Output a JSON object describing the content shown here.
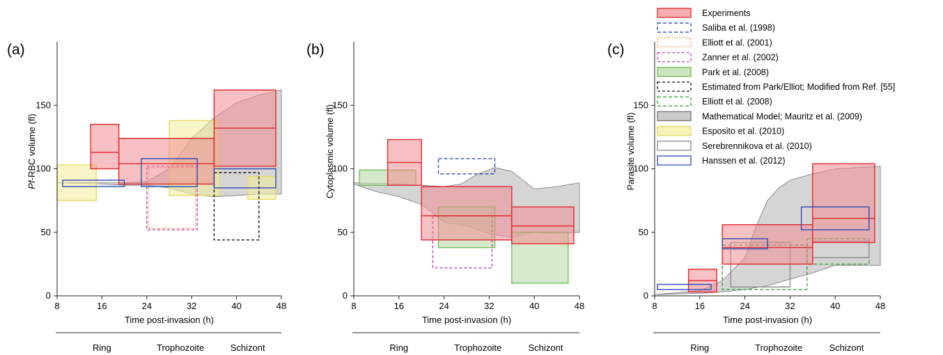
{
  "legend": [
    {
      "key": "experiments",
      "label": "Experiments",
      "style": "fill",
      "stroke": "#e0282e",
      "fill": "#f08c8f",
      "opacity": 0.55,
      "dash": ""
    },
    {
      "key": "saliba",
      "label": "Saliba et al. (1998)",
      "style": "box",
      "stroke": "#2c4bb5",
      "fill": "none",
      "opacity": 1,
      "dash": "5,3"
    },
    {
      "key": "elliott2001",
      "label": "Elliott et al. (2001)",
      "style": "box",
      "stroke": "#f08a3c",
      "fill": "none",
      "opacity": 1,
      "dash": "1.5,2"
    },
    {
      "key": "zanner",
      "label": "Zanner et al. (2002)",
      "style": "box",
      "stroke": "#b83cc0",
      "fill": "none",
      "opacity": 1,
      "dash": "4,3"
    },
    {
      "key": "park",
      "label": "Park et al. (2008)",
      "style": "fill",
      "stroke": "#6fbf5a",
      "fill": "#b9dca8",
      "opacity": 0.6,
      "dash": ""
    },
    {
      "key": "estimated",
      "label": "Estimated from Park/Elliot; Modified from Ref. [55]",
      "style": "box",
      "stroke": "#111111",
      "fill": "none",
      "opacity": 1,
      "dash": "4,3"
    },
    {
      "key": "elliott2008",
      "label": "Elliott et al. (2008)",
      "style": "box",
      "stroke": "#3aa23a",
      "fill": "none",
      "opacity": 1,
      "dash": "5,3"
    },
    {
      "key": "model",
      "label": "Mathematical Model; Mauritz et al. (2009)",
      "style": "fill",
      "stroke": "#777777",
      "fill": "#b3b3b3",
      "opacity": 0.55,
      "dash": ""
    },
    {
      "key": "esposito",
      "label": "Esposito et al. (2010)",
      "style": "fill",
      "stroke": "#e6dc60",
      "fill": "#f2ec9a",
      "opacity": 0.55,
      "dash": ""
    },
    {
      "key": "serebrennikova",
      "label": "Serebrennikova et al. (2010)",
      "style": "box",
      "stroke": "#8a8a8a",
      "fill": "none",
      "opacity": 1,
      "dash": ""
    },
    {
      "key": "hanssen",
      "label": "Hanssen et al. (2012)",
      "style": "box",
      "stroke": "#2c4bb5",
      "fill": "none",
      "opacity": 1,
      "dash": ""
    }
  ],
  "chart_data": [
    {
      "type": "area",
      "panel_label": "(a)",
      "ylabel_prefix": "Pf",
      "ylabel_rest": "-RBC volume (fl)",
      "xlabel": "Time post-invasion (h)",
      "xlim": [
        8,
        48
      ],
      "ylim": [
        0,
        200
      ],
      "xticks": [
        8,
        16,
        24,
        32,
        40,
        48
      ],
      "yticks": [
        0,
        50,
        100,
        150
      ],
      "stages": [
        "Ring",
        "Trophozoite",
        "Schizont"
      ],
      "model_band": {
        "upper": [
          [
            8,
            89
          ],
          [
            16,
            89
          ],
          [
            20,
            89
          ],
          [
            24,
            90
          ],
          [
            28,
            100
          ],
          [
            32,
            124
          ],
          [
            36,
            140
          ],
          [
            40,
            152
          ],
          [
            44,
            158
          ],
          [
            48,
            162
          ]
        ],
        "lower": [
          [
            8,
            89
          ],
          [
            16,
            88
          ],
          [
            20,
            87
          ],
          [
            24,
            87
          ],
          [
            28,
            85
          ],
          [
            32,
            80
          ],
          [
            36,
            78
          ],
          [
            40,
            79
          ],
          [
            44,
            80
          ],
          [
            48,
            80
          ]
        ]
      },
      "boxes": [
        {
          "series": "esposito",
          "x": [
            8,
            15
          ],
          "y": [
            75,
            103
          ]
        },
        {
          "series": "esposito",
          "x": [
            28,
            37
          ],
          "y": [
            79,
            138
          ]
        },
        {
          "series": "esposito",
          "x": [
            42,
            47
          ],
          "y": [
            76,
            94
          ]
        },
        {
          "series": "zanner",
          "x": [
            24,
            33
          ],
          "y": [
            52,
            102
          ]
        },
        {
          "series": "elliott2001",
          "x": [
            24.3,
            32.7
          ],
          "y": [
            53,
            101
          ]
        },
        {
          "series": "estimated",
          "x": [
            36,
            44
          ],
          "y": [
            44,
            97
          ]
        },
        {
          "series": "experiments",
          "x": [
            14,
            19
          ],
          "y": [
            100,
            135
          ],
          "median": 113
        },
        {
          "series": "experiments",
          "x": [
            19,
            36
          ],
          "y": [
            88,
            124
          ],
          "median": 104
        },
        {
          "series": "experiments",
          "x": [
            36,
            47
          ],
          "y": [
            102,
            162
          ],
          "median": 132
        },
        {
          "series": "hanssen",
          "x": [
            9,
            20
          ],
          "y": [
            86,
            91
          ]
        },
        {
          "series": "hanssen",
          "x": [
            23,
            33
          ],
          "y": [
            86,
            108
          ]
        },
        {
          "series": "hanssen",
          "x": [
            36,
            47
          ],
          "y": [
            85,
            100
          ]
        }
      ]
    },
    {
      "type": "area",
      "panel_label": "(b)",
      "ylabel_prefix": "",
      "ylabel_rest": "Cytoplasmic volume (fl)",
      "xlabel": "Time post-invasion (h)",
      "xlim": [
        8,
        48
      ],
      "ylim": [
        0,
        200
      ],
      "xticks": [
        8,
        16,
        24,
        32,
        40,
        48
      ],
      "yticks": [
        0,
        50,
        100,
        150
      ],
      "stages": [
        "Ring",
        "Trophozoite",
        "Schizont"
      ],
      "model_band": {
        "upper": [
          [
            8,
            89
          ],
          [
            16,
            88
          ],
          [
            20,
            87
          ],
          [
            24,
            86
          ],
          [
            27,
            88
          ],
          [
            30,
            96
          ],
          [
            33,
            101
          ],
          [
            36,
            98
          ],
          [
            40,
            84
          ],
          [
            44,
            86
          ],
          [
            48,
            89
          ]
        ],
        "lower": [
          [
            8,
            88
          ],
          [
            12,
            82
          ],
          [
            16,
            78
          ],
          [
            20,
            72
          ],
          [
            24,
            58
          ],
          [
            28,
            55
          ],
          [
            32,
            49
          ],
          [
            36,
            46
          ],
          [
            40,
            50
          ],
          [
            44,
            49
          ],
          [
            48,
            50
          ]
        ]
      },
      "boxes": [
        {
          "series": "park",
          "x": [
            9,
            19
          ],
          "y": [
            87,
            99
          ]
        },
        {
          "series": "park",
          "x": [
            23,
            33
          ],
          "y": [
            38,
            70
          ]
        },
        {
          "series": "park",
          "x": [
            36,
            46
          ],
          "y": [
            10,
            50
          ]
        },
        {
          "series": "saliba",
          "x": [
            23,
            33
          ],
          "y": [
            96,
            108
          ]
        },
        {
          "series": "zanner",
          "x": [
            22,
            32.5
          ],
          "y": [
            22,
            63
          ]
        },
        {
          "series": "experiments",
          "x": [
            14,
            20
          ],
          "y": [
            87,
            123
          ],
          "median": 105
        },
        {
          "series": "experiments",
          "x": [
            20,
            36
          ],
          "y": [
            44,
            86
          ],
          "median": 63
        },
        {
          "series": "experiments",
          "x": [
            36,
            47
          ],
          "y": [
            41,
            70
          ],
          "median": 55
        }
      ]
    },
    {
      "type": "area",
      "panel_label": "(c)",
      "ylabel_prefix": "",
      "ylabel_rest": "Parasite volume (fl)",
      "xlabel": "Time post-invasion (h)",
      "xlim": [
        8,
        48
      ],
      "ylim": [
        0,
        200
      ],
      "xticks": [
        8,
        16,
        24,
        32,
        40,
        48
      ],
      "yticks": [
        0,
        50,
        100,
        150
      ],
      "stages": [
        "Ring",
        "Trophozoite",
        "Schizont"
      ],
      "model_band": {
        "upper": [
          [
            8,
            1
          ],
          [
            16,
            4
          ],
          [
            20,
            12
          ],
          [
            24,
            30
          ],
          [
            26,
            55
          ],
          [
            28,
            75
          ],
          [
            30,
            85
          ],
          [
            32,
            91
          ],
          [
            36,
            96
          ],
          [
            40,
            100
          ],
          [
            44,
            101
          ],
          [
            48,
            102
          ]
        ],
        "lower": [
          [
            8,
            1
          ],
          [
            16,
            2
          ],
          [
            20,
            3
          ],
          [
            24,
            5
          ],
          [
            28,
            8
          ],
          [
            32,
            13
          ],
          [
            36,
            18
          ],
          [
            40,
            24
          ],
          [
            44,
            24
          ],
          [
            48,
            24
          ]
        ]
      },
      "boxes": [
        {
          "series": "elliott2008",
          "x": [
            20,
            35
          ],
          "y": [
            5,
            40
          ]
        },
        {
          "series": "elliott2008",
          "x": [
            35,
            46
          ],
          "y": [
            25,
            45
          ]
        },
        {
          "series": "serebrennikova",
          "x": [
            21.5,
            32
          ],
          "y": [
            7,
            42
          ]
        },
        {
          "series": "serebrennikova",
          "x": [
            36,
            46
          ],
          "y": [
            30,
            43
          ]
        },
        {
          "series": "experiments",
          "x": [
            14,
            19
          ],
          "y": [
            3,
            21
          ],
          "median": 12
        },
        {
          "series": "experiments",
          "x": [
            20,
            36
          ],
          "y": [
            25,
            56
          ],
          "median": 38
        },
        {
          "series": "experiments",
          "x": [
            36,
            47
          ],
          "y": [
            42,
            104
          ],
          "median": 61
        },
        {
          "series": "hanssen",
          "x": [
            8.5,
            18
          ],
          "y": [
            5,
            9
          ]
        },
        {
          "series": "hanssen",
          "x": [
            20,
            28
          ],
          "y": [
            37,
            45
          ]
        },
        {
          "series": "hanssen",
          "x": [
            34,
            46
          ],
          "y": [
            52,
            70
          ]
        }
      ]
    }
  ]
}
